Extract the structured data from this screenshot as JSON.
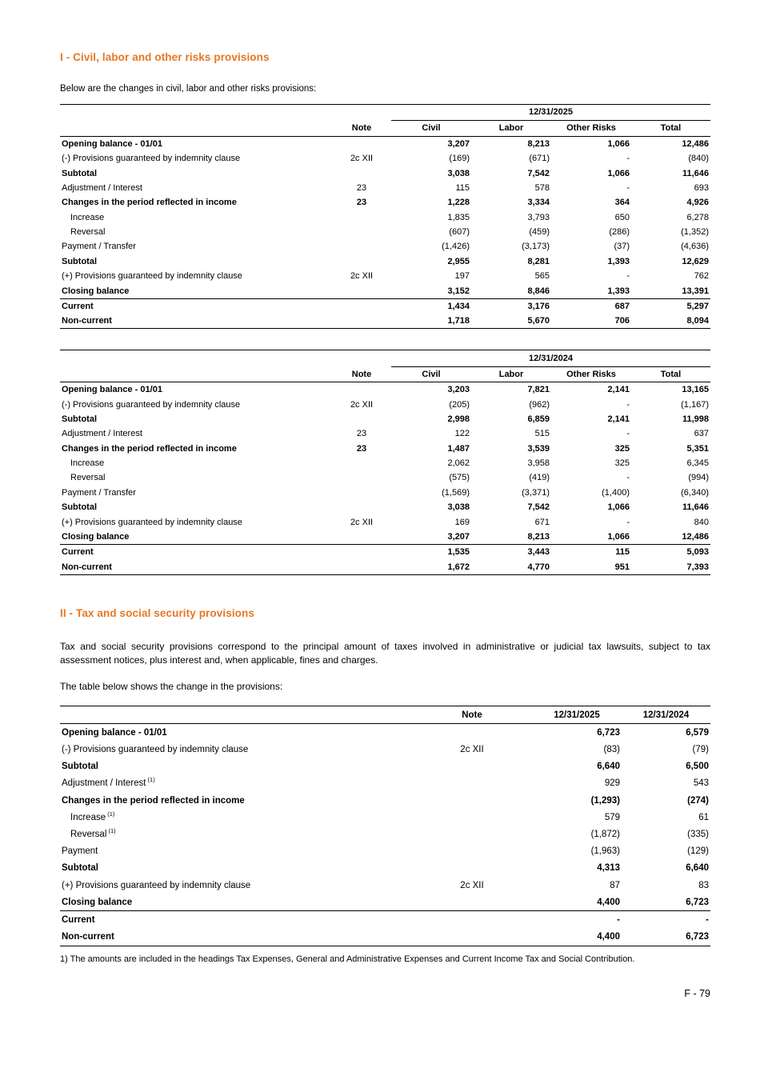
{
  "theme": {
    "accent": "#E87722"
  },
  "section1": {
    "title": "I - Civil, labor and other risks provisions",
    "intro": "Below are the changes in civil, labor and other risks provisions:",
    "tables": [
      {
        "period": "12/31/2025",
        "note_header": "Note",
        "value_columns": [
          "Civil",
          "Labor",
          "Other Risks",
          "Total"
        ],
        "rows": [
          {
            "label": "Opening balance - 01/01",
            "note": "",
            "values": [
              "3,207",
              "8,213",
              "1,066",
              "12,486"
            ],
            "bold": true
          },
          {
            "label": "(-) Provisions guaranteed by indemnity clause",
            "note": "2c XII",
            "values": [
              "(169)",
              "(671)",
              "-",
              "(840)"
            ]
          },
          {
            "label": "Subtotal",
            "note": "",
            "values": [
              "3,038",
              "7,542",
              "1,066",
              "11,646"
            ],
            "bold": true
          },
          {
            "label": "Adjustment / Interest",
            "note": "23",
            "values": [
              "115",
              "578",
              "-",
              "693"
            ]
          },
          {
            "label": "Changes in the period reflected in income",
            "note": "23",
            "values": [
              "1,228",
              "3,334",
              "364",
              "4,926"
            ],
            "bold": true
          },
          {
            "label": "Increase",
            "note": "",
            "values": [
              "1,835",
              "3,793",
              "650",
              "6,278"
            ],
            "indent": true
          },
          {
            "label": "Reversal",
            "note": "",
            "values": [
              "(607)",
              "(459)",
              "(286)",
              "(1,352)"
            ],
            "indent": true
          },
          {
            "label": "Payment / Transfer",
            "note": "",
            "values": [
              "(1,426)",
              "(3,173)",
              "(37)",
              "(4,636)"
            ]
          },
          {
            "label": "Subtotal",
            "note": "",
            "values": [
              "2,955",
              "8,281",
              "1,393",
              "12,629"
            ],
            "bold": true
          },
          {
            "label": "(+) Provisions guaranteed by indemnity clause",
            "note": "2c XII",
            "values": [
              "197",
              "565",
              "-",
              "762"
            ]
          },
          {
            "label": "Closing balance",
            "note": "",
            "values": [
              "3,152",
              "8,846",
              "1,393",
              "13,391"
            ],
            "bold": true
          },
          {
            "label": "Current",
            "note": "",
            "values": [
              "1,434",
              "3,176",
              "687",
              "5,297"
            ],
            "bold": true,
            "rule": true
          },
          {
            "label": "Non-current",
            "note": "",
            "values": [
              "1,718",
              "5,670",
              "706",
              "8,094"
            ],
            "bold": true
          }
        ]
      },
      {
        "period": "12/31/2024",
        "note_header": "Note",
        "value_columns": [
          "Civil",
          "Labor",
          "Other Risks",
          "Total"
        ],
        "rows": [
          {
            "label": "Opening balance - 01/01",
            "note": "",
            "values": [
              "3,203",
              "7,821",
              "2,141",
              "13,165"
            ],
            "bold": true
          },
          {
            "label": "(-) Provisions guaranteed by indemnity clause",
            "note": "2c XII",
            "values": [
              "(205)",
              "(962)",
              "-",
              "(1,167)"
            ]
          },
          {
            "label": "Subtotal",
            "note": "",
            "values": [
              "2,998",
              "6,859",
              "2,141",
              "11,998"
            ],
            "bold": true
          },
          {
            "label": "Adjustment / Interest",
            "note": "23",
            "values": [
              "122",
              "515",
              "-",
              "637"
            ]
          },
          {
            "label": "Changes in the period reflected in income",
            "note": "23",
            "values": [
              "1,487",
              "3,539",
              "325",
              "5,351"
            ],
            "bold": true
          },
          {
            "label": "Increase",
            "note": "",
            "values": [
              "2,062",
              "3,958",
              "325",
              "6,345"
            ],
            "indent": true
          },
          {
            "label": "Reversal",
            "note": "",
            "values": [
              "(575)",
              "(419)",
              "-",
              "(994)"
            ],
            "indent": true
          },
          {
            "label": "Payment / Transfer",
            "note": "",
            "values": [
              "(1,569)",
              "(3,371)",
              "(1,400)",
              "(6,340)"
            ]
          },
          {
            "label": "Subtotal",
            "note": "",
            "values": [
              "3,038",
              "7,542",
              "1,066",
              "11,646"
            ],
            "bold": true
          },
          {
            "label": "(+) Provisions guaranteed by indemnity clause",
            "note": "2c XII",
            "values": [
              "169",
              "671",
              "-",
              "840"
            ]
          },
          {
            "label": "Closing balance",
            "note": "",
            "values": [
              "3,207",
              "8,213",
              "1,066",
              "12,486"
            ],
            "bold": true
          },
          {
            "label": "Current",
            "note": "",
            "values": [
              "1,535",
              "3,443",
              "115",
              "5,093"
            ],
            "bold": true,
            "rule": true
          },
          {
            "label": "Non-current",
            "note": "",
            "values": [
              "1,672",
              "4,770",
              "951",
              "7,393"
            ],
            "bold": true
          }
        ]
      }
    ]
  },
  "section2": {
    "title": "II - Tax and social security provisions",
    "paragraph1": "Tax and social security provisions correspond to the principal amount of taxes involved in administrative or judicial tax lawsuits, subject to tax assessment notices, plus interest and, when applicable, fines and charges.",
    "paragraph2": "The table below shows the change in the provisions:",
    "table": {
      "note_header": "Note",
      "value_columns": [
        "12/31/2025",
        "12/31/2024"
      ],
      "rows": [
        {
          "label": "Opening balance - 01/01",
          "note": "",
          "values": [
            "6,723",
            "6,579"
          ],
          "bold": true
        },
        {
          "label": "(-) Provisions guaranteed by indemnity clause",
          "note": "2c XII",
          "values": [
            "(83)",
            "(79)"
          ]
        },
        {
          "label": "Subtotal",
          "note": "",
          "values": [
            "6,640",
            "6,500"
          ],
          "bold": true
        },
        {
          "label": "Adjustment / Interest",
          "sup": "(1)",
          "note": "",
          "values": [
            "929",
            "543"
          ]
        },
        {
          "label": "Changes in the period reflected in income",
          "note": "",
          "values": [
            "(1,293)",
            "(274)"
          ],
          "bold": true
        },
        {
          "label": "Increase",
          "sup": "(1)",
          "note": "",
          "values": [
            "579",
            "61"
          ],
          "indent": true
        },
        {
          "label": "Reversal",
          "sup": "(1)",
          "note": "",
          "values": [
            "(1,872)",
            "(335)"
          ],
          "indent": true
        },
        {
          "label": "Payment",
          "note": "",
          "values": [
            "(1,963)",
            "(129)"
          ]
        },
        {
          "label": "Subtotal",
          "note": "",
          "values": [
            "4,313",
            "6,640"
          ],
          "bold": true
        },
        {
          "label": "(+) Provisions guaranteed by indemnity clause",
          "note": "2c XII",
          "values": [
            "87",
            "83"
          ]
        },
        {
          "label": "Closing balance",
          "note": "",
          "values": [
            "4,400",
            "6,723"
          ],
          "bold": true
        },
        {
          "label": "Current",
          "note": "",
          "values": [
            "-",
            "-"
          ],
          "bold": true,
          "rule": true
        },
        {
          "label": "Non-current",
          "note": "",
          "values": [
            "4,400",
            "6,723"
          ],
          "bold": true
        }
      ]
    },
    "footnote": "1) The amounts are included in the headings Tax Expenses, General and Administrative Expenses and Current Income Tax and Social Contribution."
  },
  "footer": {
    "page_number": "F - 79"
  }
}
